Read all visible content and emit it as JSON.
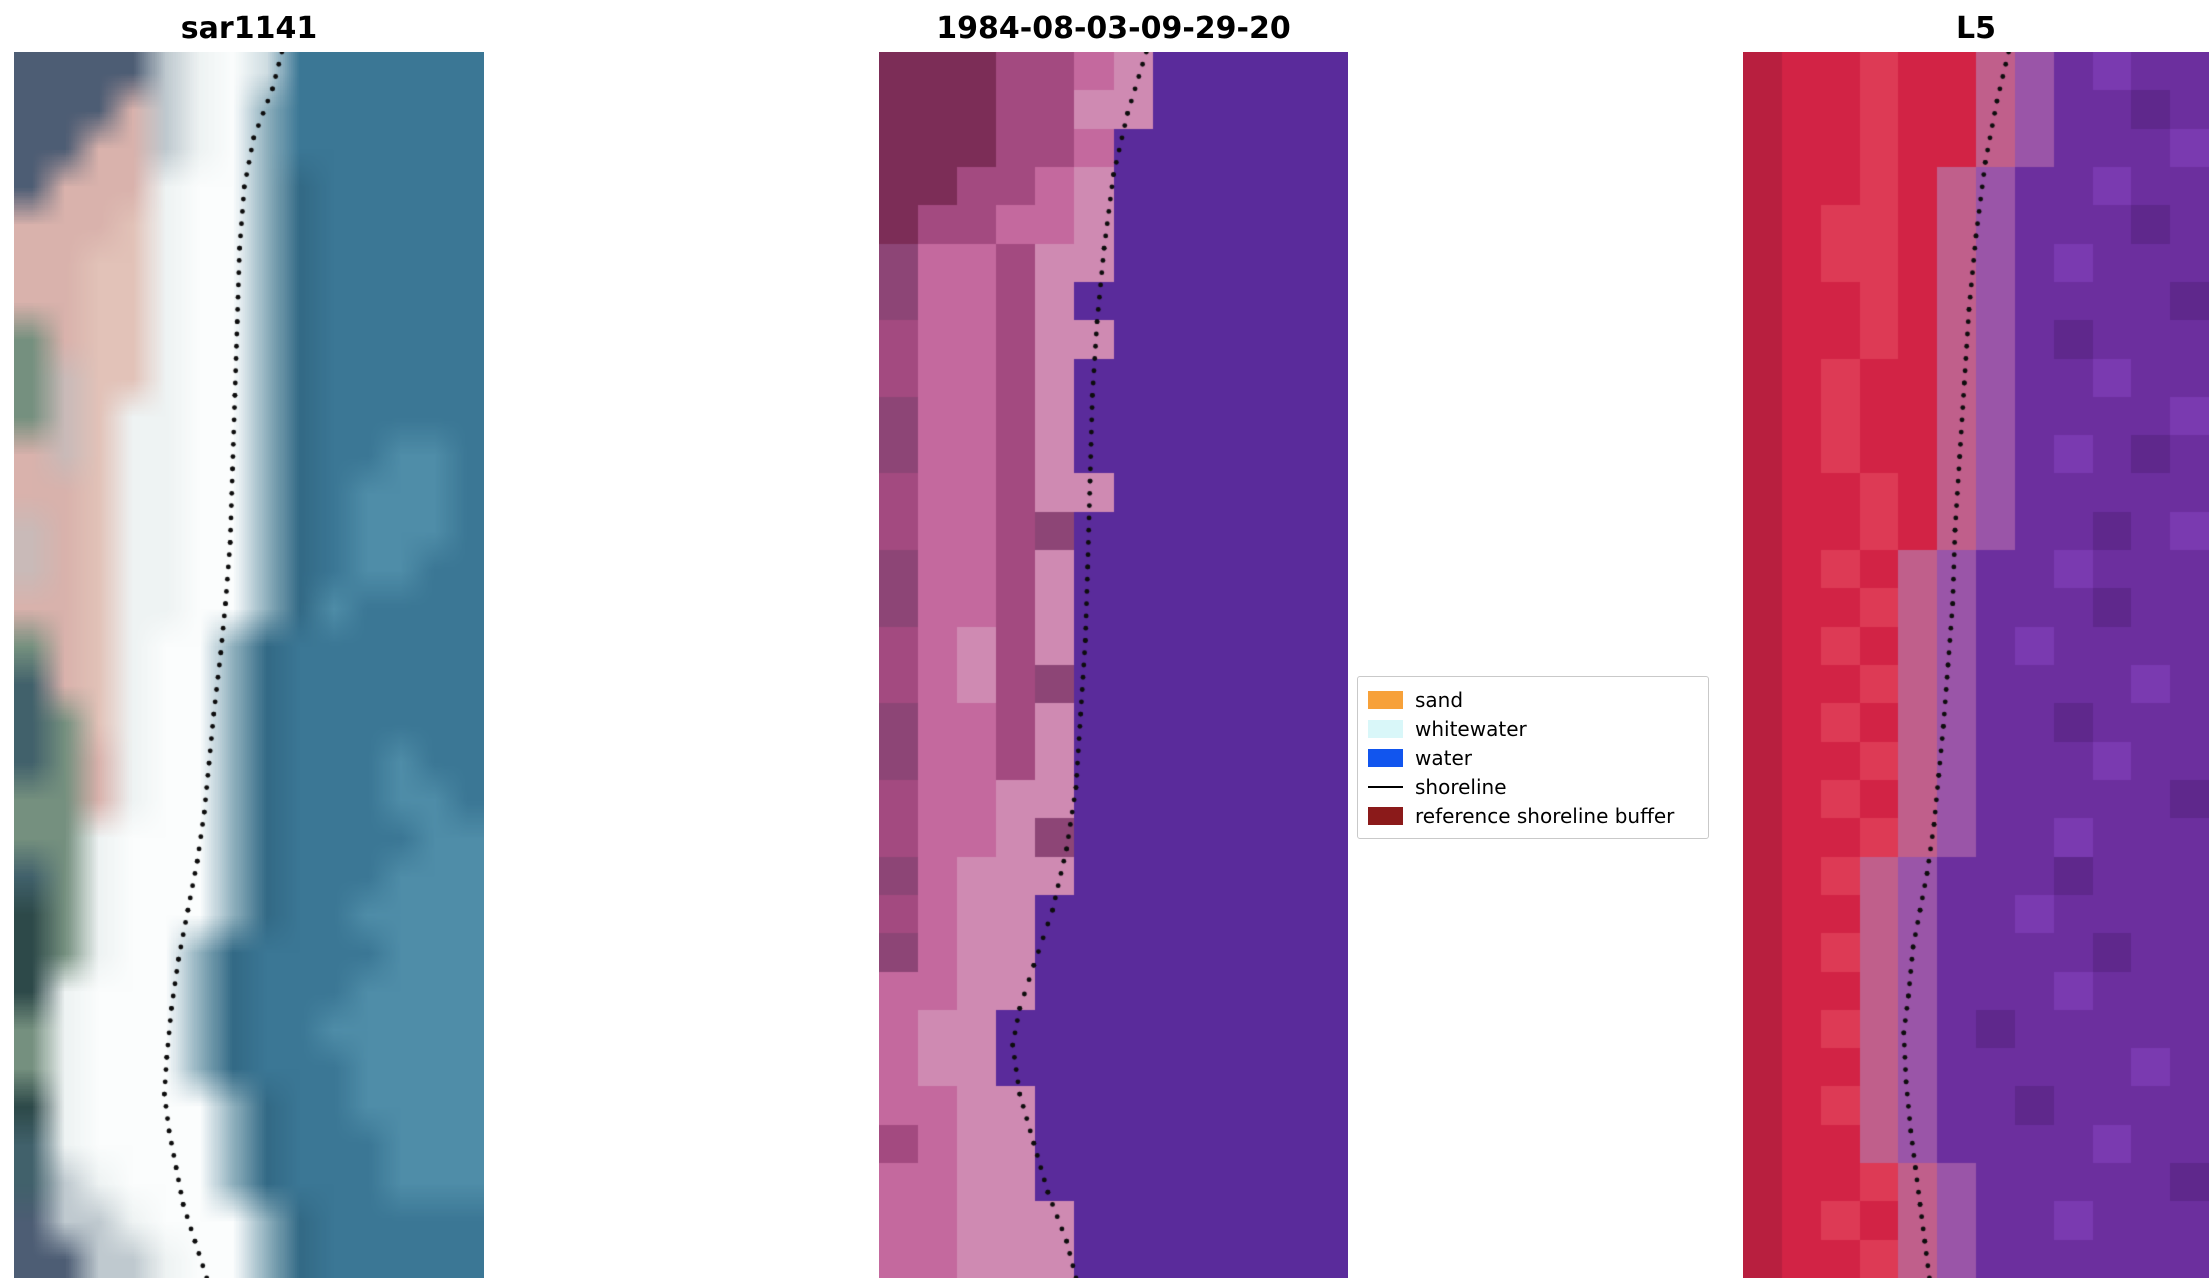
{
  "figure": {
    "background": "#ffffff"
  },
  "chart_data": {
    "type": "heatmap",
    "description": "Shoreline detection figure: SAR/RGB satellite image, classified image and false-colour L5 image with mapped shoreline dots and classification legend",
    "shoreline_style": {
      "color": "#0d0d0d",
      "dot_radius": 2.4,
      "dot_spacing": 13
    },
    "panels": [
      {
        "title": "sar1141",
        "smooth": true,
        "cols": 14,
        "palette": {
          "d": "#4d5d74",
          "e": "#41616b",
          "k": "#2d4949",
          "g": "#75907f",
          "p": "#d9b2ac",
          "q": "#c9bab8",
          "r": "#e2c2b8",
          "s": "#bfc9cf",
          "w": "#eef3f3",
          "W": "#fbfdfd",
          "n": "#cfdde2",
          "m": "#8fb0bd",
          "t": "#3b7795",
          "u": "#336a86",
          "v": "#4f8da8"
        },
        "pixels": [
          "ddddswWntttttt",
          "dddpswWmtttttt",
          "ddppswWmtttttt",
          "dpppwWWmuttttt",
          "ppprwWWmuttttt",
          "pprrwWWmuttttt",
          "pprrwWWmuttttt",
          "gprrwWWmuttttt",
          "gqrrwWWmuttttt",
          "gqrwwWWmuttttt",
          "pqrwwWWmuttvvt",
          "pprwwWWmutvvvt",
          "qprwwWWmutvvvt",
          "qprwwWWmutvvtt",
          "pprwwWWmuvtttt",
          "gprwWWmutttttt",
          "eprwWWmutttttt",
          "egrwWWmutttttt",
          "egpwWWmutttvtt",
          "ggpwWWmutttvvt",
          "ggwWWWmuttttvv",
          "egwWWWmutttvvv",
          "kgwWWWmuttvvvv",
          "kgwWWmuttttvvv",
          "kwWWWmutttvvvv",
          "gwWWWmuttvvvvv",
          "gwWWWmutttvvvv",
          "kwWWWWmuttvvvv",
          "ewWWWWmutttvvv",
          "eswWWWmutttvvv",
          "dsswWWWmuttttt",
          "ddsswWWmuttttt"
        ],
        "shoreline": [
          [
            0.57,
            0.0
          ],
          [
            0.55,
            0.03
          ],
          [
            0.51,
            0.07
          ],
          [
            0.49,
            0.11
          ],
          [
            0.48,
            0.16
          ],
          [
            0.475,
            0.22
          ],
          [
            0.47,
            0.28
          ],
          [
            0.465,
            0.34
          ],
          [
            0.46,
            0.4
          ],
          [
            0.45,
            0.45
          ],
          [
            0.44,
            0.49
          ],
          [
            0.425,
            0.54
          ],
          [
            0.415,
            0.58
          ],
          [
            0.405,
            0.62
          ],
          [
            0.39,
            0.66
          ],
          [
            0.37,
            0.7
          ],
          [
            0.35,
            0.74
          ],
          [
            0.335,
            0.78
          ],
          [
            0.325,
            0.82
          ],
          [
            0.32,
            0.85
          ],
          [
            0.33,
            0.88
          ],
          [
            0.345,
            0.91
          ],
          [
            0.36,
            0.94
          ],
          [
            0.385,
            0.97
          ],
          [
            0.41,
            1.0
          ]
        ]
      },
      {
        "title": "1984-08-03-09-29-20",
        "smooth": false,
        "cols": 12,
        "palette": {
          "A": "#7c2d57",
          "B": "#a34a80",
          "C": "#c4699e",
          "D": "#cf8ab2",
          "E": "#8d4576",
          "P": "#5a2b9b"
        },
        "pixels": [
          "AAABBCDPPPPP",
          "AAABBDDPPPPP",
          "AAABBCPPPPPP",
          "AABBCDPPPPPP",
          "ABBCCDPPPPPP",
          "ECCBDDPPPPPP",
          "ECCBDPPPPPPP",
          "BCCBDDPPPPPP",
          "BCCBDPPPPPPP",
          "ECCBDPPPPPPP",
          "ECCBDPPPPPPP",
          "BCCBDDPPPPPP",
          "BCCBEPPPPPPP",
          "ECCBDPPPPPPP",
          "ECCBDPPPPPPP",
          "BCDBDPPPPPPP",
          "BCDBEPPPPPPP",
          "ECCBDPPPPPPP",
          "ECCBDPPPPPPP",
          "BCCDDPPPPPPP",
          "BCCDEPPPPPPP",
          "ECDDDPPPPPPP",
          "BCDDPPPPPPPP",
          "ECDDPPPPPPPP",
          "CCDDPPPPPPPP",
          "CDDPPPPPPPPP",
          "CDDPPPPPPPPP",
          "CCDDPPPPPPPP",
          "BCDDPPPPPPPP",
          "CCDDPPPPPPPP",
          "CCDDDPPPPPPP",
          "CCDDDPPPPPPP"
        ],
        "shoreline": [
          [
            0.57,
            0.0
          ],
          [
            0.53,
            0.05
          ],
          [
            0.5,
            0.1
          ],
          [
            0.48,
            0.16
          ],
          [
            0.465,
            0.22
          ],
          [
            0.455,
            0.28
          ],
          [
            0.45,
            0.35
          ],
          [
            0.445,
            0.42
          ],
          [
            0.44,
            0.48
          ],
          [
            0.43,
            0.54
          ],
          [
            0.42,
            0.6
          ],
          [
            0.4,
            0.65
          ],
          [
            0.37,
            0.7
          ],
          [
            0.33,
            0.745
          ],
          [
            0.3,
            0.78
          ],
          [
            0.285,
            0.81
          ],
          [
            0.3,
            0.85
          ],
          [
            0.33,
            0.89
          ],
          [
            0.36,
            0.93
          ],
          [
            0.4,
            0.97
          ],
          [
            0.42,
            1.0
          ]
        ]
      },
      {
        "title": "L5",
        "smooth": false,
        "cols": 12,
        "palette": {
          "B": "#b81f3f",
          "R": "#d22345",
          "S": "#dd3a55",
          "T": "#c05f8b",
          "L": "#9a55a8",
          "U": "#6c2f9e",
          "V": "#7a3ab0",
          "W": "#5f288c"
        },
        "pixels": [
          "BRRSRRTLUVUU",
          "BRRSRRTLUUWU",
          "BRRSRRTLUUUV",
          "BRRSRTLUUVUU",
          "BRSSRTLUUUWU",
          "BRSSRTLUVUUU",
          "BRRSRTLUUUUW",
          "BRRSRTLUWUUU",
          "BRSRRTLUUVUU",
          "BRSRRTLUUUUV",
          "BRSRRTLUVUWU",
          "BRRSRTLUUUUU",
          "BRRSRTLUUWUV",
          "BRSRTLUUVUUU",
          "BRRSTLUUUWUU",
          "BRSRTLUVUUUU",
          "BRRSTLUUUUVU",
          "BRSRTLUUWUUU",
          "BRRSTLUUUVUU",
          "BRSRTLUUUUUW",
          "BRRSTLUUVUUU",
          "BRSTLUUUWUUU",
          "BRRTLUUVUUUU",
          "BRSTLUUUUWUU",
          "BRRTLUUUVUUU",
          "BRSTLUWUUUUU",
          "BRRTLUUUUUVU",
          "BRSTLUUWUUUU",
          "BRRTLUUUUVUU",
          "BRRSTLUUUUUW",
          "BRSRTLUUVUUU",
          "BRRSTLUUUUUU"
        ],
        "shoreline": [
          [
            0.57,
            0.0
          ],
          [
            0.545,
            0.04
          ],
          [
            0.52,
            0.09
          ],
          [
            0.5,
            0.15
          ],
          [
            0.485,
            0.21
          ],
          [
            0.475,
            0.27
          ],
          [
            0.465,
            0.33
          ],
          [
            0.455,
            0.39
          ],
          [
            0.45,
            0.45
          ],
          [
            0.44,
            0.5
          ],
          [
            0.43,
            0.55
          ],
          [
            0.42,
            0.59
          ],
          [
            0.41,
            0.63
          ],
          [
            0.395,
            0.67
          ],
          [
            0.38,
            0.7
          ],
          [
            0.365,
            0.73
          ],
          [
            0.355,
            0.77
          ],
          [
            0.345,
            0.8
          ],
          [
            0.35,
            0.84
          ],
          [
            0.36,
            0.88
          ],
          [
            0.37,
            0.91
          ],
          [
            0.38,
            0.94
          ],
          [
            0.39,
            0.97
          ],
          [
            0.4,
            1.0
          ]
        ]
      }
    ],
    "legend": {
      "entries": [
        {
          "label": "sand",
          "color": "#f7a13a",
          "style": "patch"
        },
        {
          "label": "whitewater",
          "color": "#d9f7f9",
          "style": "patch"
        },
        {
          "label": "water",
          "color": "#1155ee",
          "style": "patch"
        },
        {
          "label": "shoreline",
          "color": "#000000",
          "style": "line"
        },
        {
          "label": "reference shoreline buffer",
          "color": "#8b1a1a",
          "style": "patch"
        }
      ]
    }
  }
}
